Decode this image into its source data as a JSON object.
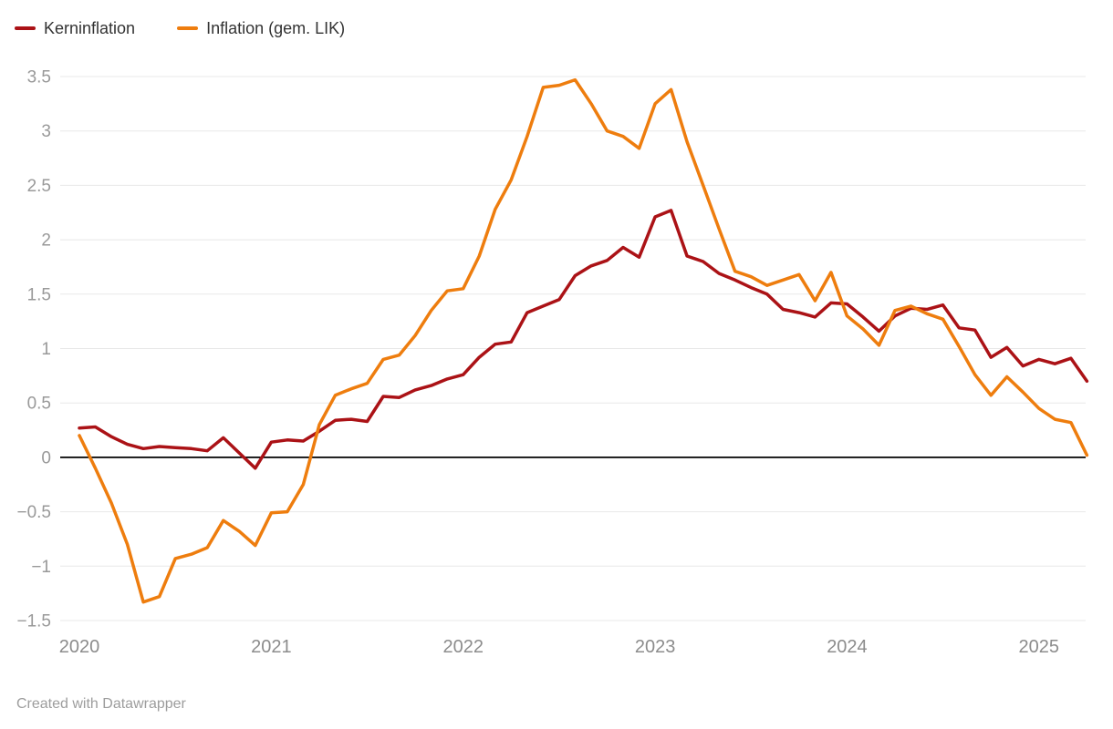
{
  "legend": {
    "items": [
      {
        "label": "Kerninflation"
      },
      {
        "label": "Inflation (gem. LIK)"
      }
    ]
  },
  "footer": {
    "text": "Created with Datawrapper"
  },
  "chart_data": {
    "type": "line",
    "title": "",
    "xlabel": "",
    "ylabel": "",
    "frequency": "monthly",
    "start_month": "2020-01",
    "end_month": "2025-04",
    "ylim": [
      -1.5,
      3.5
    ],
    "grid": "horizontal",
    "legend_position": "top-left",
    "zero_line": true,
    "colors": {
      "gridline": "#e8e8e8",
      "zero_line": "#000000",
      "background": "#ffffff"
    },
    "x_tick_labels": [
      "2020",
      "2021",
      "2022",
      "2023",
      "2024",
      "2025"
    ],
    "y_ticks": [
      3.5,
      3,
      2.5,
      2,
      1.5,
      1,
      0.5,
      0,
      -0.5,
      -1,
      -1.5
    ],
    "y_tick_labels": [
      "3.5",
      "3",
      "2.5",
      "2",
      "1.5",
      "1",
      "0.5",
      "0",
      "−0.5",
      "−1",
      "−1.5"
    ],
    "series": [
      {
        "id": "kerninflation",
        "name": "Kerninflation",
        "color": "#ab1216",
        "values": [
          0.27,
          0.28,
          0.19,
          0.12,
          0.08,
          0.1,
          0.09,
          0.08,
          0.06,
          0.18,
          0.04,
          -0.1,
          0.14,
          0.16,
          0.15,
          0.24,
          0.34,
          0.35,
          0.33,
          0.56,
          0.55,
          0.62,
          0.66,
          0.72,
          0.76,
          0.92,
          1.04,
          1.06,
          1.33,
          1.39,
          1.45,
          1.67,
          1.76,
          1.81,
          1.93,
          1.84,
          2.21,
          2.27,
          1.85,
          1.8,
          1.69,
          1.63,
          1.56,
          1.5,
          1.36,
          1.33,
          1.29,
          1.42,
          1.41,
          1.29,
          1.16,
          1.3,
          1.37,
          1.36,
          1.4,
          1.19,
          1.17,
          0.92,
          1.01,
          0.84,
          0.9,
          0.86,
          0.91,
          0.7
        ]
      },
      {
        "id": "inflation-lik",
        "name": "Inflation (gem. LIK)",
        "color": "#ee7d0e",
        "values": [
          0.2,
          -0.1,
          -0.42,
          -0.8,
          -1.33,
          -1.28,
          -0.93,
          -0.89,
          -0.83,
          -0.58,
          -0.68,
          -0.81,
          -0.51,
          -0.5,
          -0.25,
          0.3,
          0.57,
          0.63,
          0.68,
          0.9,
          0.94,
          1.12,
          1.35,
          1.53,
          1.55,
          1.85,
          2.28,
          2.55,
          2.95,
          3.4,
          3.42,
          3.47,
          3.25,
          3.0,
          2.95,
          2.84,
          3.25,
          3.38,
          2.9,
          2.5,
          2.1,
          1.71,
          1.66,
          1.58,
          1.63,
          1.68,
          1.44,
          1.7,
          1.3,
          1.18,
          1.03,
          1.35,
          1.39,
          1.32,
          1.27,
          1.02,
          0.76,
          0.57,
          0.74,
          0.6,
          0.45,
          0.35,
          0.32,
          0.02
        ]
      }
    ]
  }
}
